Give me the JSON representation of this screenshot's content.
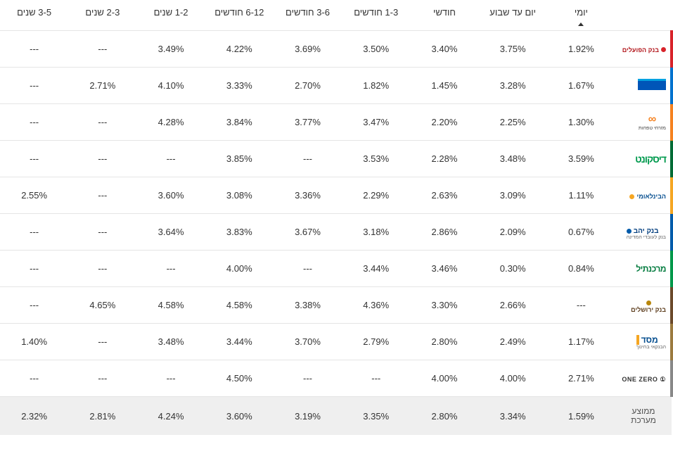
{
  "table": {
    "type": "table",
    "background_color": "#ffffff",
    "grid_color": "#e5e5e5",
    "avg_row_bg": "#efefef",
    "font_family": "Arial",
    "header_fontsize": 13,
    "cell_fontsize": 13,
    "empty_marker": "---",
    "sorted_column_index": 0,
    "columns": [
      {
        "key": "daily",
        "label": "יומי",
        "sorted": true
      },
      {
        "key": "day_to_week",
        "label": "יום עד שבוע"
      },
      {
        "key": "monthly",
        "label": "חודשי"
      },
      {
        "key": "m1_3",
        "label": "1-3 חודשים"
      },
      {
        "key": "m3_6",
        "label": "3-6 חודשים"
      },
      {
        "key": "m6_12",
        "label": "6-12 חודשים"
      },
      {
        "key": "y1_2",
        "label": "1-2 שנים"
      },
      {
        "key": "y2_3",
        "label": "2-3 שנים"
      },
      {
        "key": "y3_5",
        "label": "3-5 שנים"
      }
    ],
    "banks": [
      {
        "id": "hapoalim",
        "name": "בנק הפועלים",
        "stripe": "#d8232a",
        "logo_text": "בנק הפועלים",
        "dot_color": "#d8232a"
      },
      {
        "id": "leumi",
        "name": "לאומי",
        "stripe": "#0072ce",
        "logo_text": ""
      },
      {
        "id": "mizrahi",
        "name": "מזרחי טפחות",
        "stripe": "#f58220",
        "logo_text": "מזרחי טפחות",
        "inf_colors": [
          "#f58220",
          "#004b8d"
        ]
      },
      {
        "id": "discount",
        "name": "דיסקונט",
        "stripe": "#006b35",
        "logo_text": "דיסקונט"
      },
      {
        "id": "beinleumi",
        "name": "הבינלאומי",
        "stripe": "#f5a623",
        "logo_text": "הבינלאומי",
        "dot_color": "#f5a623"
      },
      {
        "id": "yahav",
        "name": "בנק יהב",
        "stripe": "#005baa",
        "logo_text": "בנק יהב",
        "dot_color": "#005baa"
      },
      {
        "id": "mercantile",
        "name": "מרכנתיל",
        "stripe": "#00984a",
        "logo_text": "מרכנתיל"
      },
      {
        "id": "jerusalem",
        "name": "בנק ירושלים",
        "stripe": "#6b4a2b",
        "logo_text": "בנק ירושלים",
        "dot_color": "#b8860b"
      },
      {
        "id": "masad",
        "name": "מסד",
        "stripe": "#9b7a3f",
        "logo_text": "מסד",
        "bar_color": "#f5a623",
        "subtext": "הבנקאי בחינוך"
      },
      {
        "id": "onezero",
        "name": "ONE ZERO",
        "stripe": "#888888",
        "logo_text": "ONE ZERO",
        "icon": "①"
      }
    ],
    "rows": [
      [
        "1.92%",
        "3.75%",
        "3.40%",
        "3.50%",
        "3.69%",
        "4.22%",
        "3.49%",
        "---",
        "---"
      ],
      [
        "1.67%",
        "3.28%",
        "1.45%",
        "1.82%",
        "2.70%",
        "3.33%",
        "4.10%",
        "2.71%",
        "---"
      ],
      [
        "1.30%",
        "2.25%",
        "2.20%",
        "3.47%",
        "3.77%",
        "3.84%",
        "4.28%",
        "---",
        "---"
      ],
      [
        "3.59%",
        "3.48%",
        "2.28%",
        "3.53%",
        "---",
        "3.85%",
        "---",
        "---",
        "---"
      ],
      [
        "1.11%",
        "3.09%",
        "2.63%",
        "2.29%",
        "3.36%",
        "3.08%",
        "3.60%",
        "---",
        "2.55%"
      ],
      [
        "0.67%",
        "2.09%",
        "2.86%",
        "3.18%",
        "3.67%",
        "3.83%",
        "3.64%",
        "---",
        "---"
      ],
      [
        "0.84%",
        "0.30%",
        "3.46%",
        "3.44%",
        "---",
        "4.00%",
        "---",
        "---",
        "---"
      ],
      [
        "---",
        "2.66%",
        "3.30%",
        "4.36%",
        "3.38%",
        "4.58%",
        "4.58%",
        "4.65%",
        "---"
      ],
      [
        "1.17%",
        "2.49%",
        "2.80%",
        "2.79%",
        "3.70%",
        "3.44%",
        "3.48%",
        "---",
        "1.40%"
      ],
      [
        "2.71%",
        "4.00%",
        "4.00%",
        "---",
        "---",
        "4.50%",
        "---",
        "---",
        "---"
      ]
    ],
    "average": {
      "label": "ממוצע מערכת",
      "values": [
        "1.59%",
        "3.34%",
        "2.80%",
        "3.35%",
        "3.19%",
        "3.60%",
        "4.24%",
        "2.81%",
        "2.32%"
      ]
    }
  }
}
